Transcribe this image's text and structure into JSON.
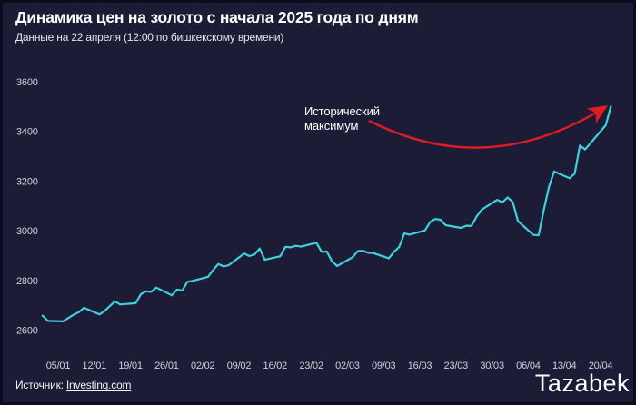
{
  "header": {
    "title": "Динамика цен на золото с начала 2025 года по дням",
    "subtitle": "Данные на 22 апреля (12:00 по бишкекскому времени)"
  },
  "footer": {
    "source_label": "Источник:",
    "source_link": "Investing.com",
    "logo": "Tazabek"
  },
  "colors": {
    "background": "#1c1c36",
    "frame_border": "#0c0c1c",
    "line": "#3fd0dc",
    "arrow": "#e11b23",
    "tick_text": "#cfcfdb",
    "annotation_text": "#ffffff"
  },
  "chart_data": {
    "type": "line",
    "title": "Динамика цен на золото с начала 2025 года по дням",
    "subtitle": "Данные на 22 апреля (12:00 по бишкекскому времени)",
    "grid": false,
    "ylim": [
      2600,
      3600
    ],
    "y_ticks": [
      2600,
      2800,
      3000,
      3200,
      3400,
      3600
    ],
    "x_tick_labels": [
      "05/01",
      "12/01",
      "19/01",
      "26/01",
      "02/02",
      "09/02",
      "16/02",
      "23/02",
      "02/03",
      "09/03",
      "16/03",
      "23/03",
      "30/03",
      "06/04",
      "13/04",
      "20/04"
    ],
    "annotation": {
      "text": "Исторический максимум",
      "line1": "Исторический",
      "line2": "максимум",
      "points_to": [
        "22/04",
        3500
      ]
    },
    "points": [
      [
        "02/01",
        2658
      ],
      [
        "03/01",
        2637
      ],
      [
        "06/01",
        2635
      ],
      [
        "07/01",
        2649
      ],
      [
        "08/01",
        2662
      ],
      [
        "09/01",
        2672
      ],
      [
        "10/01",
        2690
      ],
      [
        "13/01",
        2663
      ],
      [
        "14/01",
        2677
      ],
      [
        "15/01",
        2697
      ],
      [
        "16/01",
        2715
      ],
      [
        "17/01",
        2703
      ],
      [
        "20/01",
        2708
      ],
      [
        "21/01",
        2744
      ],
      [
        "22/01",
        2756
      ],
      [
        "23/01",
        2754
      ],
      [
        "24/01",
        2771
      ],
      [
        "27/01",
        2740
      ],
      [
        "28/01",
        2763
      ],
      [
        "29/01",
        2759
      ],
      [
        "30/01",
        2794
      ],
      [
        "31/01",
        2798
      ],
      [
        "03/02",
        2814
      ],
      [
        "04/02",
        2842
      ],
      [
        "05/02",
        2866
      ],
      [
        "06/02",
        2856
      ],
      [
        "07/02",
        2861
      ],
      [
        "10/02",
        2908
      ],
      [
        "11/02",
        2898
      ],
      [
        "12/02",
        2904
      ],
      [
        "13/02",
        2928
      ],
      [
        "14/02",
        2883
      ],
      [
        "17/02",
        2897
      ],
      [
        "18/02",
        2935
      ],
      [
        "19/02",
        2933
      ],
      [
        "20/02",
        2939
      ],
      [
        "21/02",
        2936
      ],
      [
        "24/02",
        2951
      ],
      [
        "25/02",
        2915
      ],
      [
        "26/02",
        2916
      ],
      [
        "27/02",
        2877
      ],
      [
        "28/02",
        2858
      ],
      [
        "03/03",
        2893
      ],
      [
        "04/03",
        2918
      ],
      [
        "05/03",
        2919
      ],
      [
        "06/03",
        2911
      ],
      [
        "07/03",
        2910
      ],
      [
        "10/03",
        2889
      ],
      [
        "11/03",
        2915
      ],
      [
        "12/03",
        2934
      ],
      [
        "13/03",
        2989
      ],
      [
        "14/03",
        2984
      ],
      [
        "17/03",
        3001
      ],
      [
        "18/03",
        3035
      ],
      [
        "19/03",
        3047
      ],
      [
        "20/03",
        3044
      ],
      [
        "21/03",
        3022
      ],
      [
        "24/03",
        3011
      ],
      [
        "25/03",
        3020
      ],
      [
        "26/03",
        3019
      ],
      [
        "27/03",
        3057
      ],
      [
        "28/03",
        3085
      ],
      [
        "31/03",
        3124
      ],
      [
        "01/04",
        3114
      ],
      [
        "02/04",
        3134
      ],
      [
        "03/04",
        3115
      ],
      [
        "04/04",
        3038
      ],
      [
        "07/04",
        2983
      ],
      [
        "08/04",
        2982
      ],
      [
        "09/04",
        3083
      ],
      [
        "10/04",
        3176
      ],
      [
        "11/04",
        3238
      ],
      [
        "14/04",
        3211
      ],
      [
        "15/04",
        3230
      ],
      [
        "16/04",
        3343
      ],
      [
        "17/04",
        3327
      ],
      [
        "21/04",
        3424
      ],
      [
        "22/04",
        3500
      ]
    ]
  }
}
